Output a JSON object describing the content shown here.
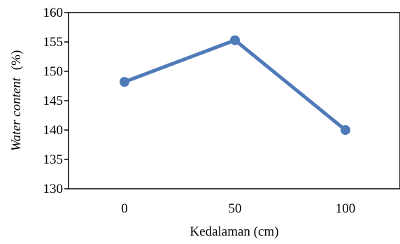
{
  "chart_data": {
    "type": "line",
    "x": [
      "0",
      "50",
      "100"
    ],
    "series": [
      {
        "values": [
          148.2,
          155.3,
          140.0
        ]
      }
    ],
    "xlabel": "Kedalaman (cm)",
    "ylabel_main": "Water content",
    "ylabel_unit": "(%)",
    "ylim": [
      130,
      160
    ],
    "yticks": [
      "130",
      "135",
      "140",
      "145",
      "150",
      "155",
      "160"
    ],
    "grid": false,
    "legend": "none",
    "line_color": "#4f7ab8"
  }
}
